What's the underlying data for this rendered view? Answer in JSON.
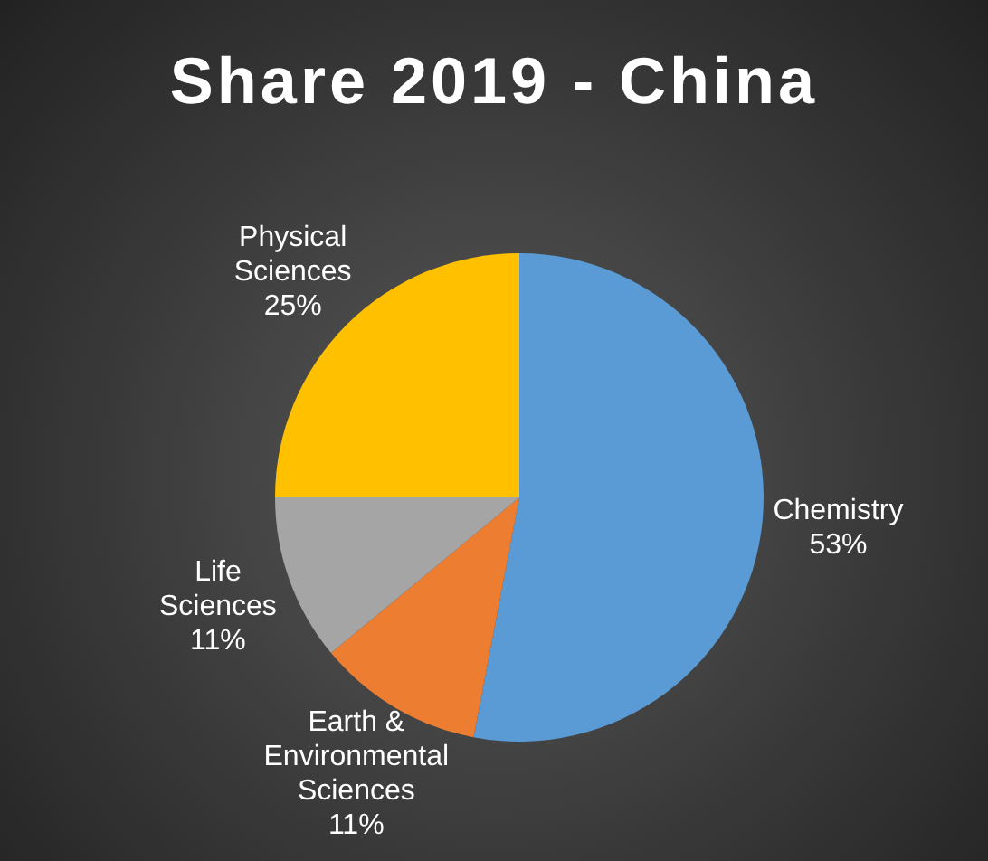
{
  "chart_data": {
    "type": "pie",
    "title": "Share 2019 - China",
    "categories": [
      "Chemistry",
      "Earth & Environmental Sciences",
      "Life Sciences",
      "Physical Sciences"
    ],
    "values": [
      53,
      11,
      11,
      25
    ],
    "colors": [
      "#5b9bd5",
      "#ed7d31",
      "#a5a5a5",
      "#ffc000"
    ],
    "value_labels": [
      "53%",
      "11%",
      "11%",
      "25%"
    ]
  }
}
